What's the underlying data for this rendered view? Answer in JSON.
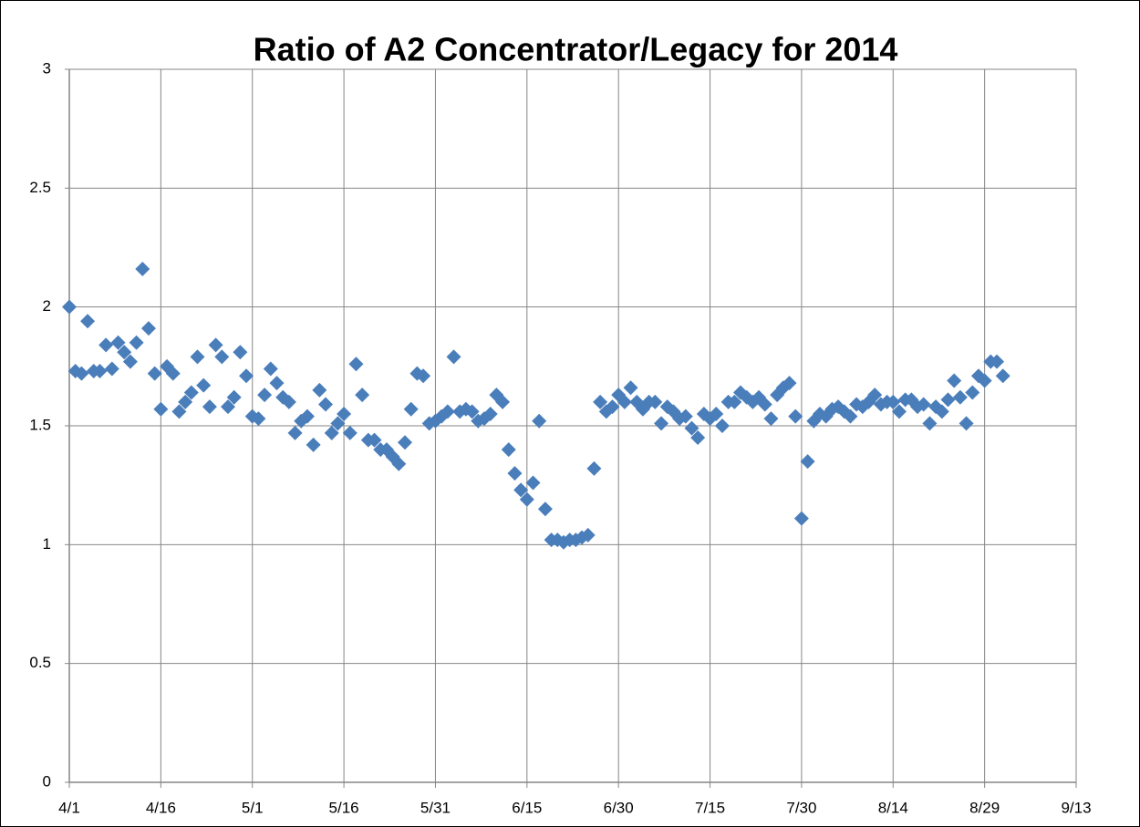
{
  "chart_data": {
    "type": "scatter",
    "title": "Ratio of A2 Concentrator/Legacy for 2014",
    "x": [
      "4/1",
      "4/2",
      "4/3",
      "4/4",
      "4/5",
      "4/6",
      "4/7",
      "4/8",
      "4/9",
      "4/10",
      "4/11",
      "4/12",
      "4/13",
      "4/14",
      "4/15",
      "4/16",
      "4/17",
      "4/18",
      "4/19",
      "4/20",
      "4/21",
      "4/22",
      "4/23",
      "4/24",
      "4/25",
      "4/26",
      "4/27",
      "4/28",
      "4/29",
      "4/30",
      "5/1",
      "5/2",
      "5/3",
      "5/4",
      "5/5",
      "5/6",
      "5/7",
      "5/8",
      "5/9",
      "5/10",
      "5/11",
      "5/12",
      "5/13",
      "5/14",
      "5/15",
      "5/16",
      "5/17",
      "5/18",
      "5/19",
      "5/20",
      "5/21",
      "5/22",
      "5/23",
      "5/24",
      "5/25",
      "5/26",
      "5/27",
      "5/28",
      "5/29",
      "5/30",
      "5/31",
      "6/1",
      "6/2",
      "6/3",
      "6/4",
      "6/5",
      "6/6",
      "6/7",
      "6/8",
      "6/9",
      "6/10",
      "6/11",
      "6/12",
      "6/13",
      "6/14",
      "6/15",
      "6/16",
      "6/17",
      "6/18",
      "6/19",
      "6/20",
      "6/21",
      "6/22",
      "6/23",
      "6/24",
      "6/25",
      "6/26",
      "6/27",
      "6/28",
      "6/29",
      "6/30",
      "7/1",
      "7/2",
      "7/3",
      "7/4",
      "7/5",
      "7/6",
      "7/7",
      "7/8",
      "7/9",
      "7/10",
      "7/11",
      "7/12",
      "7/13",
      "7/14",
      "7/15",
      "7/16",
      "7/17",
      "7/18",
      "7/19",
      "7/20",
      "7/21",
      "7/22",
      "7/23",
      "7/24",
      "7/25",
      "7/26",
      "7/27",
      "7/28",
      "7/29",
      "7/30",
      "7/31",
      "8/1",
      "8/2",
      "8/3",
      "8/4",
      "8/5",
      "8/6",
      "8/7",
      "8/8",
      "8/9",
      "8/10",
      "8/11",
      "8/12",
      "8/13",
      "8/14",
      "8/15",
      "8/16",
      "8/17",
      "8/18",
      "8/19",
      "8/20",
      "8/21",
      "8/22",
      "8/23",
      "8/24",
      "8/25",
      "8/26",
      "8/27",
      "8/28",
      "8/29",
      "8/30",
      "8/31",
      "9/1"
    ],
    "values": [
      2.0,
      1.73,
      1.72,
      1.94,
      1.73,
      1.73,
      1.84,
      1.74,
      1.85,
      1.81,
      1.77,
      1.85,
      2.16,
      1.91,
      1.72,
      1.57,
      1.75,
      1.72,
      1.56,
      1.6,
      1.64,
      1.79,
      1.67,
      1.58,
      1.84,
      1.79,
      1.58,
      1.62,
      1.81,
      1.71,
      1.54,
      1.53,
      1.63,
      1.74,
      1.68,
      1.62,
      1.6,
      1.47,
      1.52,
      1.54,
      1.42,
      1.65,
      1.59,
      1.47,
      1.51,
      1.55,
      1.47,
      1.76,
      1.63,
      1.44,
      1.44,
      1.4,
      1.4,
      1.37,
      1.34,
      1.43,
      1.57,
      1.72,
      1.71,
      1.51,
      1.52,
      1.54,
      1.56,
      1.79,
      1.56,
      1.57,
      1.56,
      1.52,
      1.53,
      1.55,
      1.63,
      1.6,
      1.4,
      1.3,
      1.23,
      1.19,
      1.26,
      1.52,
      1.15,
      1.02,
      1.02,
      1.01,
      1.02,
      1.02,
      1.03,
      1.04,
      1.32,
      1.6,
      1.56,
      1.58,
      1.63,
      1.6,
      1.66,
      1.6,
      1.57,
      1.6,
      1.6,
      1.51,
      1.58,
      1.56,
      1.53,
      1.54,
      1.49,
      1.45,
      1.55,
      1.53,
      1.55,
      1.5,
      1.6,
      1.6,
      1.64,
      1.62,
      1.6,
      1.62,
      1.59,
      1.53,
      1.63,
      1.66,
      1.68,
      1.54,
      1.11,
      1.35,
      1.52,
      1.55,
      1.54,
      1.57,
      1.58,
      1.56,
      1.54,
      1.59,
      1.58,
      1.6,
      1.63,
      1.59,
      1.6,
      1.6,
      1.56,
      1.61,
      1.61,
      1.58,
      1.59,
      1.51,
      1.58,
      1.56,
      1.61,
      1.69,
      1.62,
      1.51,
      1.64,
      1.71,
      1.69,
      1.77,
      1.77,
      1.71
    ],
    "color": "#4a7ebb",
    "xlim": [
      "4/1",
      "9/13"
    ],
    "xticks": [
      "4/1",
      "4/16",
      "5/1",
      "5/16",
      "5/31",
      "6/15",
      "6/30",
      "7/15",
      "7/30",
      "8/14",
      "8/29",
      "9/13"
    ],
    "ylim": [
      0,
      3
    ],
    "yticks": [
      0,
      0.5,
      1,
      1.5,
      2,
      2.5,
      3
    ],
    "grid": true
  }
}
